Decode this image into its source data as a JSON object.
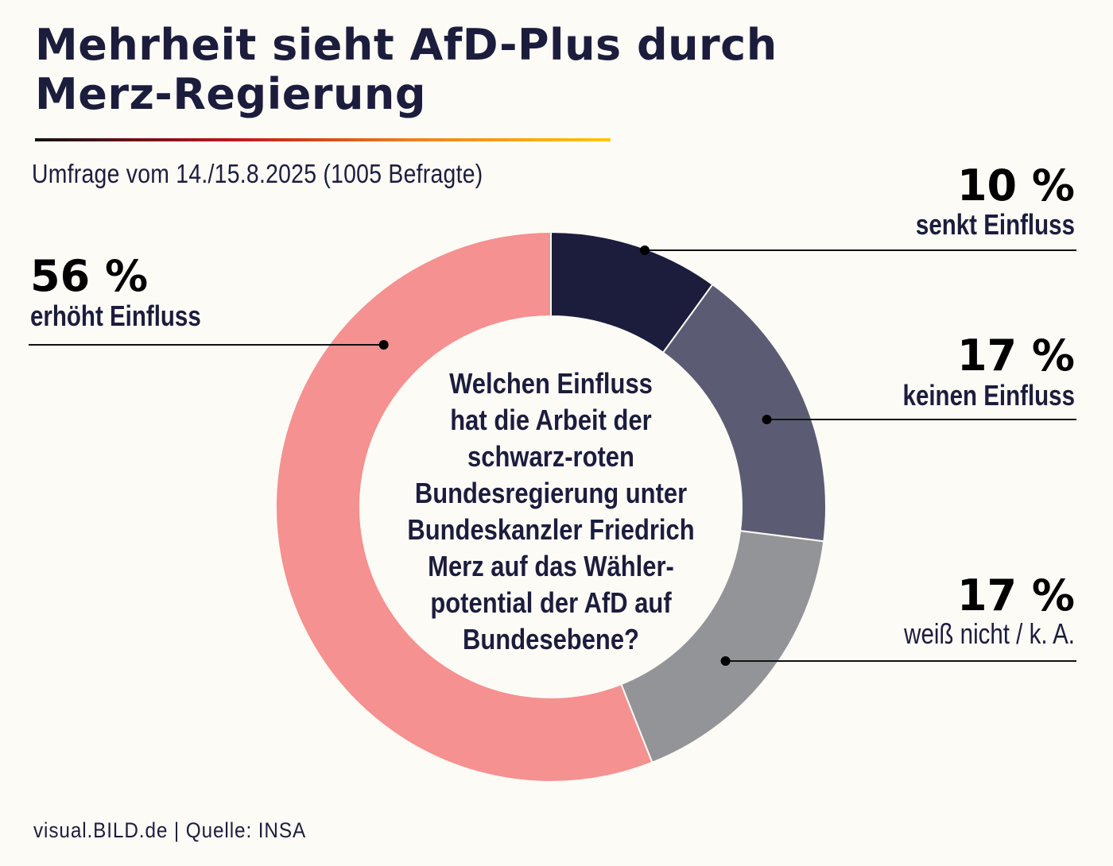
{
  "header": {
    "title_line1": "Mehrheit sieht AfD-Plus durch",
    "title_line2": "Merz-Regierung",
    "subtitle": "Umfrage vom 14./15.8.2025 (1005 Befragte)"
  },
  "footer": {
    "credit": "visual.BILD.de | Quelle: INSA"
  },
  "colors": {
    "background": "#fdfbf6",
    "text": "#1c1d3d",
    "rule_gradient": [
      "#111111",
      "#c4161c",
      "#ee7f1e",
      "#fcc800"
    ]
  },
  "chart_data": {
    "type": "pie",
    "variant": "donut",
    "title": "Mehrheit sieht AfD-Plus durch Merz-Regierung",
    "subtitle": "Umfrage vom 14./15.8.2025 (1005 Befragte)",
    "center_text": [
      "Welchen Einfluss",
      "hat die Arbeit der",
      "schwarz-roten",
      "Bundesregierung unter",
      "Bundeskanzler Friedrich",
      "Merz auf das Wähler-",
      "potential der AfD auf",
      "Bundesebene?"
    ],
    "unit": "%",
    "start": "top",
    "direction": "clockwise",
    "slices": [
      {
        "label": "senkt Einfluss",
        "value": 10,
        "value_label": "10 %",
        "color": "#1c1d3d",
        "label_side": "right",
        "label_weight": "bold"
      },
      {
        "label": "keinen Einfluss",
        "value": 17,
        "value_label": "17 %",
        "color": "#5b5c74",
        "label_side": "right",
        "label_weight": "bold"
      },
      {
        "label": "weiß nicht / k. A.",
        "value": 17,
        "value_label": "17 %",
        "color": "#939497",
        "label_side": "right",
        "label_weight": "normal"
      },
      {
        "label": "erhöht Einfluss",
        "value": 56,
        "value_label": "56 %",
        "color": "#f59190",
        "label_side": "left",
        "label_weight": "bold"
      }
    ],
    "source": "INSA"
  }
}
